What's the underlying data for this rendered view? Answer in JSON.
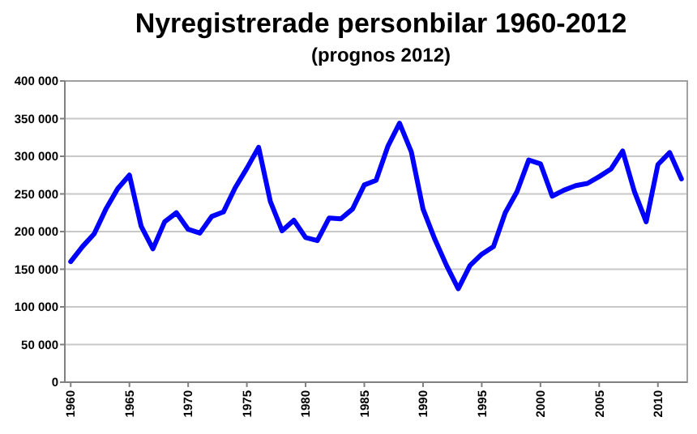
{
  "chart_data": {
    "type": "line",
    "title": "Nyregistrerade personbilar 1960-2012",
    "subtitle": "(prognos 2012)",
    "x": [
      1960,
      1961,
      1962,
      1963,
      1964,
      1965,
      1966,
      1967,
      1968,
      1969,
      1970,
      1971,
      1972,
      1973,
      1974,
      1975,
      1976,
      1977,
      1978,
      1979,
      1980,
      1981,
      1982,
      1983,
      1984,
      1985,
      1986,
      1987,
      1988,
      1989,
      1990,
      1991,
      1992,
      1993,
      1994,
      1995,
      1996,
      1997,
      1998,
      1999,
      2000,
      2001,
      2002,
      2003,
      2004,
      2005,
      2006,
      2007,
      2008,
      2009,
      2010,
      2011,
      2012
    ],
    "series": [
      {
        "color": "#0000ff",
        "values": [
          160000,
          180000,
          197000,
          230000,
          257000,
          275000,
          207000,
          177000,
          213000,
          225000,
          203000,
          198000,
          220000,
          226000,
          258000,
          284000,
          312000,
          240000,
          201000,
          215000,
          192000,
          188000,
          218000,
          217000,
          230000,
          262000,
          268000,
          313000,
          344000,
          306000,
          230000,
          190000,
          155000,
          124000,
          155000,
          170000,
          180000,
          225000,
          253000,
          295000,
          290000,
          247000,
          255000,
          261000,
          264000,
          273000,
          283000,
          307000,
          253000,
          213000,
          289000,
          305000,
          270000
        ]
      }
    ],
    "xlim": [
      1959.5,
      2012.5
    ],
    "xticks": [
      1960,
      1965,
      1970,
      1975,
      1980,
      1985,
      1990,
      1995,
      2000,
      2005,
      2010
    ],
    "ylim": [
      0,
      400000
    ],
    "yticks": [
      0,
      {
        "value": 50000,
        "label": "50 000"
      },
      {
        "value": 100000,
        "label": "100 000"
      },
      {
        "value": 150000,
        "label": "150 000"
      },
      {
        "value": 200000,
        "label": "200 000"
      },
      {
        "value": 250000,
        "label": "250 000"
      },
      {
        "value": 300000,
        "label": "300 000"
      },
      {
        "value": 350000,
        "label": "350 000"
      },
      {
        "value": 400000,
        "label": "400 000"
      }
    ],
    "grid": "y",
    "marker": "none",
    "line_style": "solid"
  }
}
